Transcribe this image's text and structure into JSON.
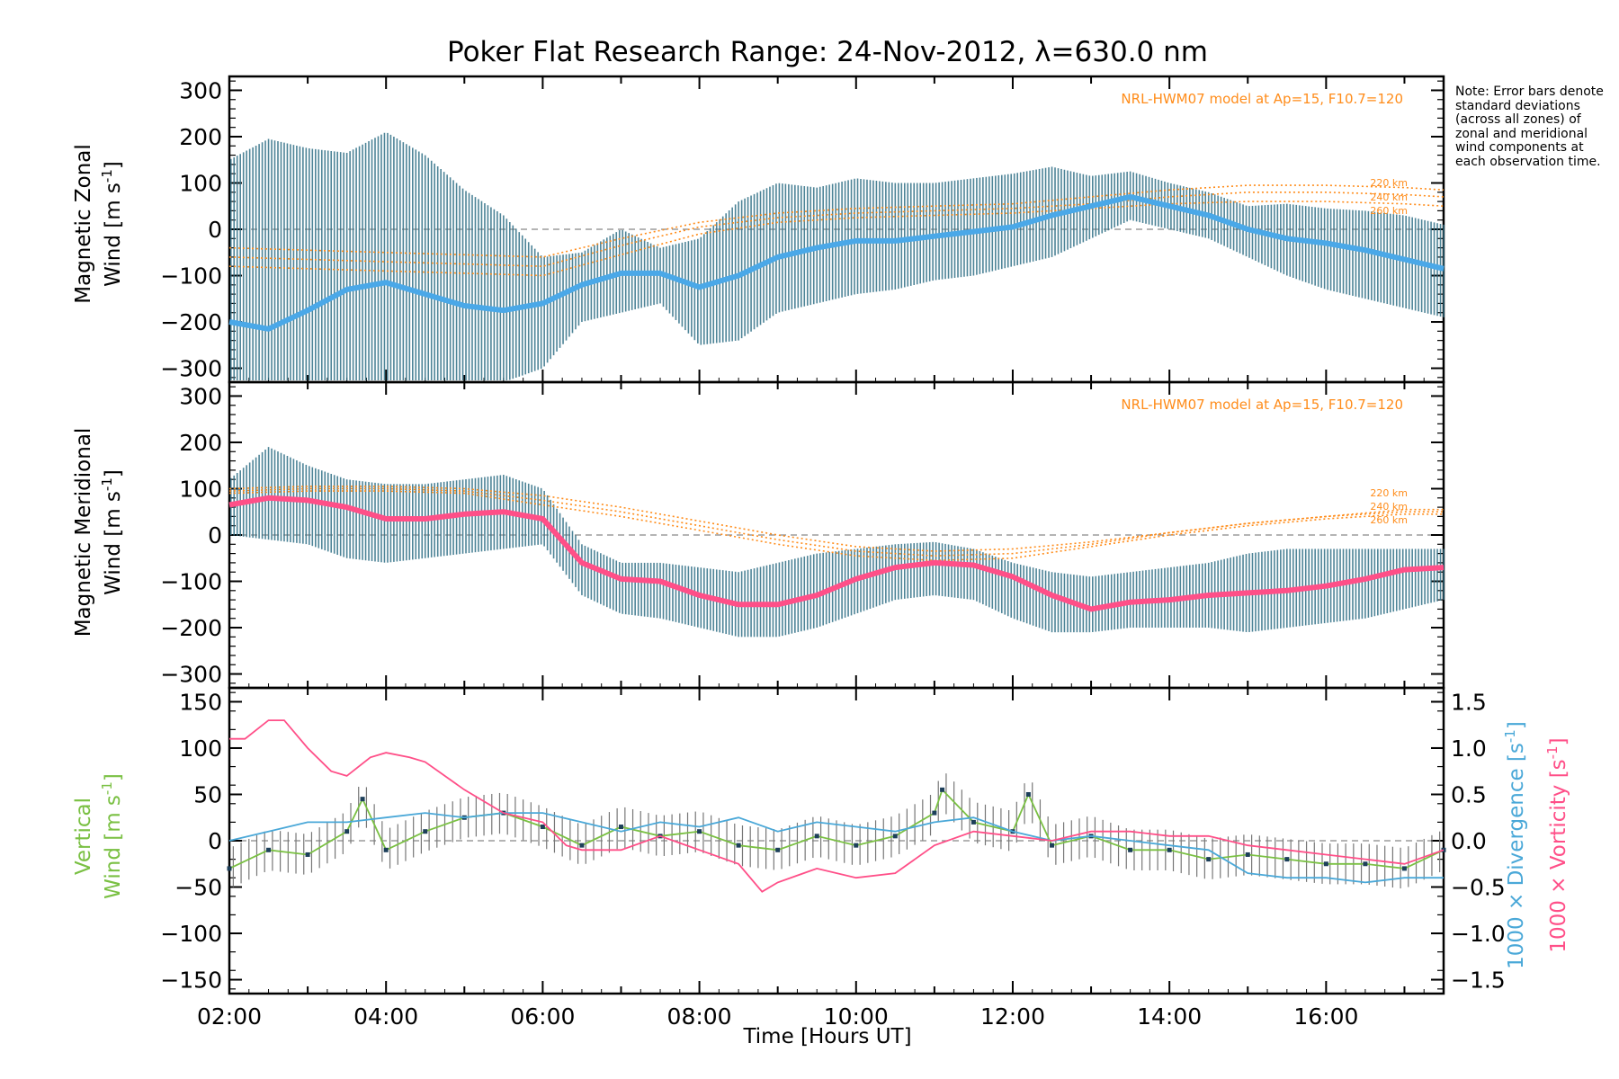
{
  "title": "Poker Flat Research Range: 24-Nov-2012, λ=630.0 nm",
  "note": "Note: Error bars denote standard deviations (across all zones) of zonal and meridional wind components at each observation time.",
  "xlabel": "Time [Hours UT]",
  "xticks": [
    "02:00",
    "04:00",
    "06:00",
    "08:00",
    "10:00",
    "12:00",
    "14:00",
    "16:00"
  ],
  "colors": {
    "zonal_mean": "#4aa8e8",
    "meridional_mean": "#ff4f88",
    "error_bar": "#2f6f86",
    "model": "#ff8c1a",
    "vertical": "#7ac043",
    "divergence": "#4aa8d8",
    "vorticity": "#ff4f88",
    "zero_line": "#888888"
  },
  "panels": {
    "zonal": {
      "ylabel_line1": "Magnetic Zonal",
      "ylabel_line2": "Wind [m s",
      "ylabel_sup": "-1",
      "ylabel_close": "]",
      "model_label": "NRL-HWM07 model at Ap=15, F10.7=120",
      "alt_labels": [
        "220 km",
        "240 km",
        "260 km"
      ]
    },
    "meridional": {
      "ylabel_line1": "Magnetic Meridional",
      "ylabel_line2": "Wind [m s",
      "ylabel_sup": "-1",
      "ylabel_close": "]",
      "model_label": "NRL-HWM07 model at Ap=15, F10.7=120",
      "alt_labels": [
        "220 km",
        "240 km",
        "260 km"
      ]
    },
    "vertical": {
      "ylabel_line1": "Vertical",
      "ylabel_line2": "Wind [m s",
      "ylabel_sup": "-1",
      "ylabel_close": "]",
      "right_label_div": "1000 × Divergence [s",
      "right_label_vort": "1000 × Vorticity [s",
      "right_sup": "-1",
      "right_close": "]"
    }
  },
  "chart_data": [
    {
      "type": "line",
      "panel": "zonal",
      "ylim": [
        -330,
        330
      ],
      "yticks": [
        -300,
        -200,
        -100,
        0,
        100,
        200,
        300
      ],
      "xlim": [
        2.0,
        17.5
      ],
      "series": [
        {
          "key": "mean",
          "x": [
            2.0,
            2.5,
            3.0,
            3.5,
            4.0,
            4.5,
            5.0,
            5.5,
            6.0,
            6.5,
            7.0,
            7.5,
            8.0,
            8.5,
            9.0,
            9.5,
            10.0,
            10.5,
            11.0,
            11.5,
            12.0,
            12.5,
            13.0,
            13.5,
            14.0,
            14.5,
            15.0,
            15.5,
            16.0,
            16.5,
            17.0,
            17.5
          ],
          "y": [
            -200,
            -215,
            -175,
            -130,
            -115,
            -140,
            -165,
            -175,
            -160,
            -120,
            -95,
            -95,
            -125,
            -100,
            -60,
            -40,
            -25,
            -25,
            -15,
            -5,
            5,
            30,
            50,
            70,
            50,
            30,
            0,
            -20,
            -30,
            -45,
            -65,
            -85
          ]
        },
        {
          "key": "upper",
          "x": [
            2.0,
            2.5,
            3.0,
            3.5,
            4.0,
            4.5,
            5.0,
            5.5,
            6.0,
            6.5,
            7.0,
            7.5,
            8.0,
            8.5,
            9.0,
            9.5,
            10.0,
            10.5,
            11.0,
            11.5,
            12.0,
            12.5,
            13.0,
            13.5,
            14.0,
            14.5,
            15.0,
            15.5,
            16.0,
            16.5,
            17.0,
            17.5
          ],
          "y": [
            150,
            195,
            175,
            165,
            210,
            160,
            85,
            30,
            -60,
            -50,
            0,
            -40,
            -20,
            60,
            100,
            90,
            110,
            100,
            100,
            110,
            120,
            135,
            115,
            125,
            100,
            80,
            50,
            55,
            45,
            40,
            30,
            10
          ]
        },
        {
          "key": "lower",
          "x": [
            2.0,
            2.5,
            3.0,
            3.5,
            4.0,
            4.5,
            5.0,
            5.5,
            6.0,
            6.5,
            7.0,
            7.5,
            8.0,
            8.5,
            9.0,
            9.5,
            10.0,
            10.5,
            11.0,
            11.5,
            12.0,
            12.5,
            13.0,
            13.5,
            14.0,
            14.5,
            15.0,
            15.5,
            16.0,
            16.5,
            17.0,
            17.5
          ],
          "y": [
            -330,
            -330,
            -330,
            -330,
            -330,
            -330,
            -330,
            -330,
            -300,
            -200,
            -180,
            -160,
            -250,
            -240,
            -180,
            -160,
            -140,
            -130,
            -110,
            -100,
            -80,
            -60,
            -20,
            20,
            0,
            -20,
            -60,
            -100,
            -130,
            -150,
            -170,
            -190
          ]
        },
        {
          "key": "model_220",
          "x": [
            2.0,
            3.0,
            4.0,
            5.0,
            6.0,
            7.0,
            8.0,
            9.0,
            10.0,
            11.0,
            12.0,
            13.0,
            14.0,
            15.0,
            16.0,
            17.0,
            17.5
          ],
          "y": [
            -40,
            -45,
            -50,
            -55,
            -60,
            -20,
            15,
            35,
            45,
            50,
            55,
            70,
            85,
            95,
            95,
            90,
            85
          ]
        },
        {
          "key": "model_240",
          "x": [
            2.0,
            3.0,
            4.0,
            5.0,
            6.0,
            7.0,
            8.0,
            9.0,
            10.0,
            11.0,
            12.0,
            13.0,
            14.0,
            15.0,
            16.0,
            17.0,
            17.5
          ],
          "y": [
            -60,
            -65,
            -70,
            -75,
            -80,
            -35,
            5,
            25,
            35,
            40,
            45,
            55,
            70,
            80,
            80,
            75,
            70
          ]
        },
        {
          "key": "model_260",
          "x": [
            2.0,
            3.0,
            4.0,
            5.0,
            6.0,
            7.0,
            8.0,
            9.0,
            10.0,
            11.0,
            12.0,
            13.0,
            14.0,
            15.0,
            16.0,
            17.0,
            17.5
          ],
          "y": [
            -80,
            -85,
            -90,
            -95,
            -100,
            -55,
            -10,
            15,
            25,
            30,
            35,
            45,
            55,
            60,
            60,
            55,
            50
          ]
        }
      ]
    },
    {
      "type": "line",
      "panel": "meridional",
      "ylim": [
        -330,
        330
      ],
      "yticks": [
        -300,
        -200,
        -100,
        0,
        100,
        200,
        300
      ],
      "xlim": [
        2.0,
        17.5
      ],
      "series": [
        {
          "key": "mean",
          "x": [
            2.0,
            2.5,
            3.0,
            3.5,
            4.0,
            4.5,
            5.0,
            5.5,
            6.0,
            6.5,
            7.0,
            7.5,
            8.0,
            8.5,
            9.0,
            9.5,
            10.0,
            10.5,
            11.0,
            11.5,
            12.0,
            12.5,
            13.0,
            13.5,
            14.0,
            14.5,
            15.0,
            15.5,
            16.0,
            16.5,
            17.0,
            17.5
          ],
          "y": [
            65,
            80,
            75,
            60,
            35,
            35,
            45,
            50,
            35,
            -60,
            -95,
            -100,
            -130,
            -150,
            -150,
            -130,
            -95,
            -70,
            -60,
            -65,
            -90,
            -130,
            -160,
            -145,
            -140,
            -130,
            -125,
            -120,
            -110,
            -95,
            -75,
            -70
          ]
        },
        {
          "key": "upper",
          "x": [
            2.0,
            2.5,
            3.0,
            3.5,
            4.0,
            4.5,
            5.0,
            5.5,
            6.0,
            6.5,
            7.0,
            7.5,
            8.0,
            8.5,
            9.0,
            9.5,
            10.0,
            10.5,
            11.0,
            11.5,
            12.0,
            12.5,
            13.0,
            13.5,
            14.0,
            14.5,
            15.0,
            15.5,
            16.0,
            16.5,
            17.0,
            17.5
          ],
          "y": [
            120,
            190,
            150,
            120,
            110,
            110,
            120,
            130,
            100,
            -20,
            -60,
            -60,
            -70,
            -80,
            -60,
            -40,
            -30,
            -20,
            -15,
            -30,
            -60,
            -80,
            -90,
            -80,
            -70,
            -60,
            -40,
            -30,
            -30,
            -30,
            -30,
            -30
          ]
        },
        {
          "key": "lower",
          "x": [
            2.0,
            2.5,
            3.0,
            3.5,
            4.0,
            4.5,
            5.0,
            5.5,
            6.0,
            6.5,
            7.0,
            7.5,
            8.0,
            8.5,
            9.0,
            9.5,
            10.0,
            10.5,
            11.0,
            11.5,
            12.0,
            12.5,
            13.0,
            13.5,
            14.0,
            14.5,
            15.0,
            15.5,
            16.0,
            16.5,
            17.0,
            17.5
          ],
          "y": [
            0,
            -10,
            -20,
            -50,
            -60,
            -50,
            -40,
            -30,
            -20,
            -130,
            -170,
            -180,
            -200,
            -220,
            -220,
            -200,
            -170,
            -140,
            -130,
            -140,
            -180,
            -210,
            -210,
            -200,
            -200,
            -200,
            -210,
            -200,
            -190,
            -180,
            -160,
            -140
          ]
        },
        {
          "key": "model_220",
          "x": [
            2.0,
            3.0,
            4.0,
            5.0,
            6.0,
            7.0,
            8.0,
            9.0,
            10.0,
            11.0,
            12.0,
            13.0,
            14.0,
            15.0,
            16.0,
            17.0,
            17.5
          ],
          "y": [
            100,
            105,
            105,
            100,
            85,
            60,
            30,
            0,
            -25,
            -35,
            -30,
            -15,
            5,
            25,
            40,
            55,
            55
          ]
        },
        {
          "key": "model_240",
          "x": [
            2.0,
            3.0,
            4.0,
            5.0,
            6.0,
            7.0,
            8.0,
            9.0,
            10.0,
            11.0,
            12.0,
            13.0,
            14.0,
            15.0,
            16.0,
            17.0,
            17.5
          ],
          "y": [
            95,
            100,
            100,
            95,
            75,
            50,
            20,
            -10,
            -35,
            -45,
            -40,
            -20,
            5,
            25,
            40,
            50,
            50
          ]
        },
        {
          "key": "model_260",
          "x": [
            2.0,
            3.0,
            4.0,
            5.0,
            6.0,
            7.0,
            8.0,
            9.0,
            10.0,
            11.0,
            12.0,
            13.0,
            14.0,
            15.0,
            16.0,
            17.0,
            17.5
          ],
          "y": [
            90,
            95,
            95,
            90,
            65,
            40,
            10,
            -20,
            -45,
            -55,
            -50,
            -25,
            0,
            20,
            35,
            45,
            45
          ]
        }
      ]
    },
    {
      "type": "line",
      "panel": "vertical",
      "ylim": [
        -165,
        165
      ],
      "yticks": [
        -150,
        -100,
        -50,
        0,
        50,
        100,
        150
      ],
      "y2lim": [
        -1.65,
        1.65
      ],
      "y2ticks": [
        -1.5,
        -1.0,
        -0.5,
        0.0,
        0.5,
        1.0,
        1.5
      ],
      "y2ticklabels": [
        "−1.5",
        "−1.0",
        "−0.5",
        "0.0",
        "0.5",
        "1.0",
        "1.5"
      ],
      "xlim": [
        2.0,
        17.5
      ],
      "series": [
        {
          "key": "vertical",
          "x": [
            2.0,
            2.5,
            3.0,
            3.5,
            3.7,
            4.0,
            4.5,
            5.0,
            5.5,
            6.0,
            6.5,
            7.0,
            7.5,
            8.0,
            8.5,
            9.0,
            9.5,
            10.0,
            10.5,
            11.0,
            11.1,
            11.5,
            12.0,
            12.2,
            12.5,
            13.0,
            13.5,
            14.0,
            14.5,
            15.0,
            15.5,
            16.0,
            16.5,
            17.0,
            17.5
          ],
          "y": [
            -30,
            -10,
            -15,
            10,
            45,
            -10,
            10,
            25,
            30,
            15,
            -5,
            15,
            5,
            10,
            -5,
            -10,
            5,
            -5,
            5,
            30,
            55,
            20,
            10,
            50,
            -5,
            5,
            -10,
            -10,
            -20,
            -15,
            -20,
            -25,
            -25,
            -30,
            -10
          ]
        },
        {
          "key": "divergence",
          "x": [
            2.0,
            2.5,
            3.0,
            3.5,
            4.0,
            4.5,
            5.0,
            5.5,
            6.0,
            6.5,
            7.0,
            7.5,
            8.0,
            8.5,
            9.0,
            9.5,
            10.0,
            10.5,
            11.0,
            11.5,
            12.0,
            12.5,
            13.0,
            13.5,
            14.0,
            14.5,
            15.0,
            15.5,
            16.0,
            16.5,
            17.0,
            17.5
          ],
          "y": [
            0.0,
            0.1,
            0.2,
            0.2,
            0.25,
            0.3,
            0.25,
            0.3,
            0.3,
            0.2,
            0.1,
            0.2,
            0.15,
            0.25,
            0.1,
            0.2,
            0.15,
            0.1,
            0.2,
            0.25,
            0.1,
            0.0,
            0.05,
            0.0,
            -0.05,
            -0.1,
            -0.35,
            -0.4,
            -0.4,
            -0.45,
            -0.4,
            -0.4
          ]
        },
        {
          "key": "vorticity",
          "x": [
            2.0,
            2.2,
            2.5,
            2.7,
            3.0,
            3.3,
            3.5,
            3.8,
            4.0,
            4.3,
            4.5,
            5.0,
            5.5,
            6.0,
            6.3,
            6.5,
            7.0,
            7.5,
            8.0,
            8.5,
            8.8,
            9.0,
            9.5,
            10.0,
            10.5,
            11.0,
            11.5,
            12.0,
            12.5,
            13.0,
            13.5,
            14.0,
            14.5,
            15.0,
            15.5,
            16.0,
            16.5,
            17.0,
            17.5
          ],
          "y": [
            1.1,
            1.1,
            1.3,
            1.3,
            1.0,
            0.75,
            0.7,
            0.9,
            0.95,
            0.9,
            0.85,
            0.55,
            0.3,
            0.2,
            -0.05,
            -0.1,
            -0.1,
            0.05,
            -0.1,
            -0.25,
            -0.55,
            -0.45,
            -0.3,
            -0.4,
            -0.35,
            -0.05,
            0.1,
            0.05,
            0.0,
            0.1,
            0.1,
            0.05,
            0.05,
            -0.05,
            -0.1,
            -0.15,
            -0.2,
            -0.25,
            -0.1
          ]
        }
      ]
    }
  ]
}
